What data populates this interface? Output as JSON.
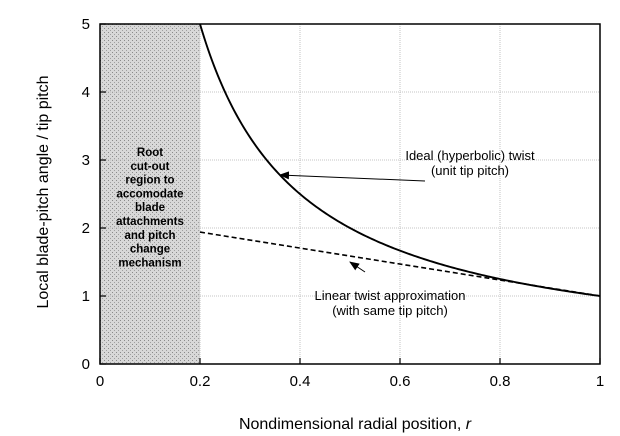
{
  "chart_data": {
    "type": "line",
    "title": "",
    "xlabel": "Nondimensional radial position, ",
    "xlabel_var": "r",
    "ylabel": "Local blade-pitch angle / tip pitch",
    "xlim": [
      0,
      1
    ],
    "ylim": [
      0,
      5
    ],
    "x_ticks": [
      "0",
      "0.2",
      "0.4",
      "0.6",
      "0.8",
      "1"
    ],
    "y_ticks": [
      "0",
      "1",
      "2",
      "3",
      "4",
      "5"
    ],
    "grid": true,
    "shaded_region": {
      "x": [
        0,
        0.2
      ],
      "lines": [
        "Root",
        "cut-out",
        "region to",
        "accomodate",
        "blade",
        "attachments",
        "and pitch",
        "change",
        "mechanism"
      ]
    },
    "series": [
      {
        "name": "Ideal (hyperbolic) twist",
        "style": "solid",
        "function": "1/r",
        "x_range": [
          0.2,
          1
        ]
      },
      {
        "name": "Linear twist approximation",
        "style": "dashed",
        "points": [
          [
            0.2,
            1.94
          ],
          [
            1.0,
            1.0
          ]
        ]
      }
    ],
    "annotations": [
      {
        "lines": [
          "Ideal (hyperbolic) twist",
          "(unit tip pitch)"
        ],
        "points_to": [
          0.36,
          2.78
        ]
      },
      {
        "lines": [
          "Linear twist approximation",
          "(with same tip pitch)"
        ],
        "points_to": [
          0.5,
          1.5
        ]
      }
    ]
  }
}
